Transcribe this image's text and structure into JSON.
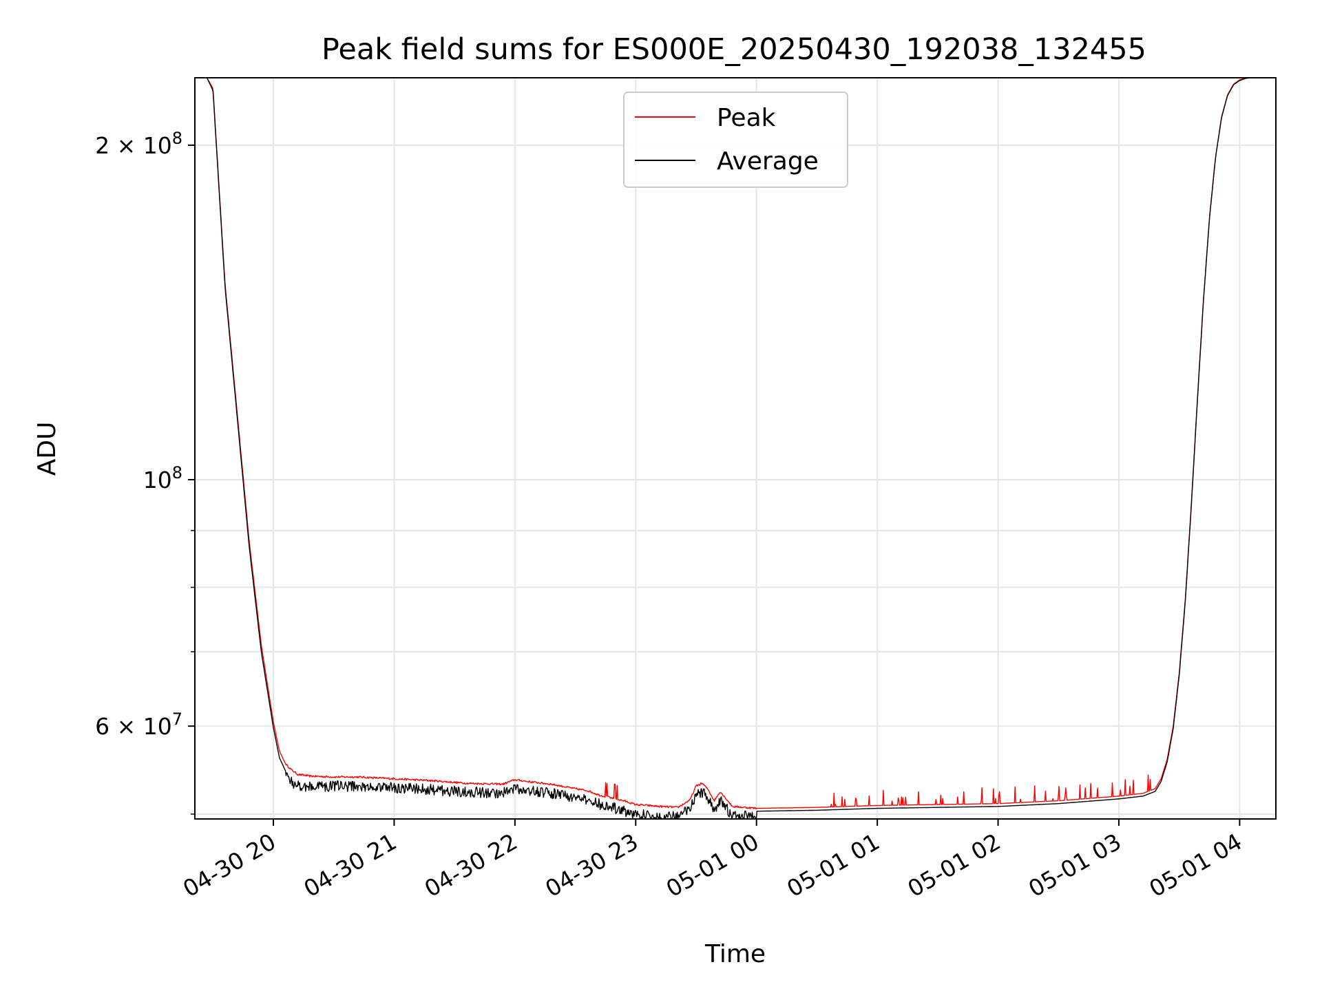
{
  "chart_data": {
    "type": "line",
    "title": "Peak field sums for ES000E_20250430_192038_132455",
    "xlabel": "Time",
    "ylabel": "ADU",
    "yscale": "log",
    "grid": true,
    "legend_position": "top-center",
    "x_unit": "hours since 2025-04-30 00:00",
    "xlim": [
      19.35,
      28.3
    ],
    "ylim": [
      49500000,
      230000000
    ],
    "x_ticks": [
      {
        "value": 20,
        "label": "04-30 20"
      },
      {
        "value": 21,
        "label": "04-30 21"
      },
      {
        "value": 22,
        "label": "04-30 22"
      },
      {
        "value": 23,
        "label": "04-30 23"
      },
      {
        "value": 24,
        "label": "05-01 00"
      },
      {
        "value": 25,
        "label": "05-01 01"
      },
      {
        "value": 26,
        "label": "05-01 02"
      },
      {
        "value": 27,
        "label": "05-01 03"
      },
      {
        "value": 28,
        "label": "05-01 04"
      }
    ],
    "y_ticks_major": [
      {
        "value": 60000000,
        "mantissa": "6",
        "base": "10",
        "exponent": "7",
        "times": "×"
      },
      {
        "value": 100000000,
        "mantissa": "",
        "base": "10",
        "exponent": "8",
        "times": ""
      },
      {
        "value": 200000000,
        "mantissa": "2",
        "base": "10",
        "exponent": "8",
        "times": "×"
      }
    ],
    "y_ticks_minor": [
      50000000,
      70000000,
      80000000,
      90000000
    ],
    "series": [
      {
        "name": "Peak",
        "color": "#ff0000",
        "x": [
          19.35,
          19.45,
          19.5,
          19.6,
          19.7,
          19.8,
          19.9,
          20.0,
          20.05,
          20.1,
          20.15,
          20.2,
          20.3,
          20.5,
          20.7,
          21.0,
          21.3,
          21.6,
          21.9,
          22.0,
          22.1,
          22.3,
          22.5,
          22.6,
          22.7,
          22.8,
          22.9,
          23.0,
          23.2,
          23.35,
          23.45,
          23.5,
          23.55,
          23.6,
          23.65,
          23.7,
          23.8,
          24.0,
          24.5,
          25.0,
          25.5,
          26.0,
          26.5,
          27.0,
          27.2,
          27.3,
          27.35,
          27.4,
          27.45,
          27.5,
          27.55,
          27.6,
          27.65,
          27.7,
          27.75,
          27.8,
          27.85,
          27.9,
          27.95,
          28.0,
          28.05,
          28.1,
          28.2,
          28.3
        ],
        "y": [
          230000000,
          230000000,
          225000000,
          150000000,
          115000000,
          88000000,
          71000000,
          60500000,
          57000000,
          55500000,
          54800000,
          54300000,
          54100000,
          54000000,
          54000000,
          53800000,
          53600000,
          53300000,
          53200000,
          53700000,
          53500000,
          53200000,
          52700000,
          52500000,
          52000000,
          51700000,
          51400000,
          51000000,
          50800000,
          50700000,
          51500000,
          53000000,
          53300000,
          52600000,
          51400000,
          52400000,
          50800000,
          50600000,
          50700000,
          50900000,
          51000000,
          51100000,
          51400000,
          51900000,
          52200000,
          52700000,
          53800000,
          56000000,
          60000000,
          67000000,
          78000000,
          95000000,
          118000000,
          145000000,
          172000000,
          195000000,
          212000000,
          222000000,
          227000000,
          229000000,
          230000000,
          230000000,
          230000000,
          230000000
        ]
      },
      {
        "name": "Average",
        "color": "#000000",
        "x": [
          19.35,
          19.45,
          19.5,
          19.6,
          19.7,
          19.8,
          19.9,
          20.0,
          20.05,
          20.1,
          20.15,
          20.2,
          20.3,
          20.5,
          20.7,
          21.0,
          21.3,
          21.6,
          21.9,
          22.0,
          22.1,
          22.3,
          22.5,
          22.6,
          22.7,
          22.8,
          22.9,
          23.0,
          23.2,
          23.35,
          23.45,
          23.5,
          23.55,
          23.6,
          23.65,
          23.7,
          23.8,
          24.0,
          24.5,
          25.0,
          25.5,
          26.0,
          26.5,
          27.0,
          27.2,
          27.3,
          27.35,
          27.4,
          27.45,
          27.5,
          27.55,
          27.6,
          27.65,
          27.7,
          27.75,
          27.8,
          27.85,
          27.9,
          27.95,
          28.0,
          28.05,
          28.1,
          28.2,
          28.3
        ],
        "y": [
          230000000,
          230000000,
          224000000,
          149000000,
          114000000,
          87000000,
          70000000,
          59800000,
          56200000,
          54700000,
          54000000,
          53600000,
          53500000,
          53600000,
          53500000,
          53400000,
          53200000,
          52900000,
          52800000,
          53300000,
          53100000,
          52800000,
          52300000,
          52000000,
          51600000,
          51300000,
          50900000,
          50500000,
          50400000,
          50300000,
          51100000,
          52600000,
          52900000,
          52200000,
          51000000,
          52000000,
          50400000,
          50300000,
          50400000,
          50600000,
          50700000,
          50800000,
          51100000,
          51600000,
          51900000,
          52400000,
          53500000,
          55700000,
          59700000,
          66700000,
          77700000,
          94700000,
          117700000,
          144700000,
          171700000,
          194700000,
          211700000,
          221700000,
          226700000,
          228700000,
          229700000,
          230000000,
          230000000,
          230000000
        ]
      }
    ]
  }
}
